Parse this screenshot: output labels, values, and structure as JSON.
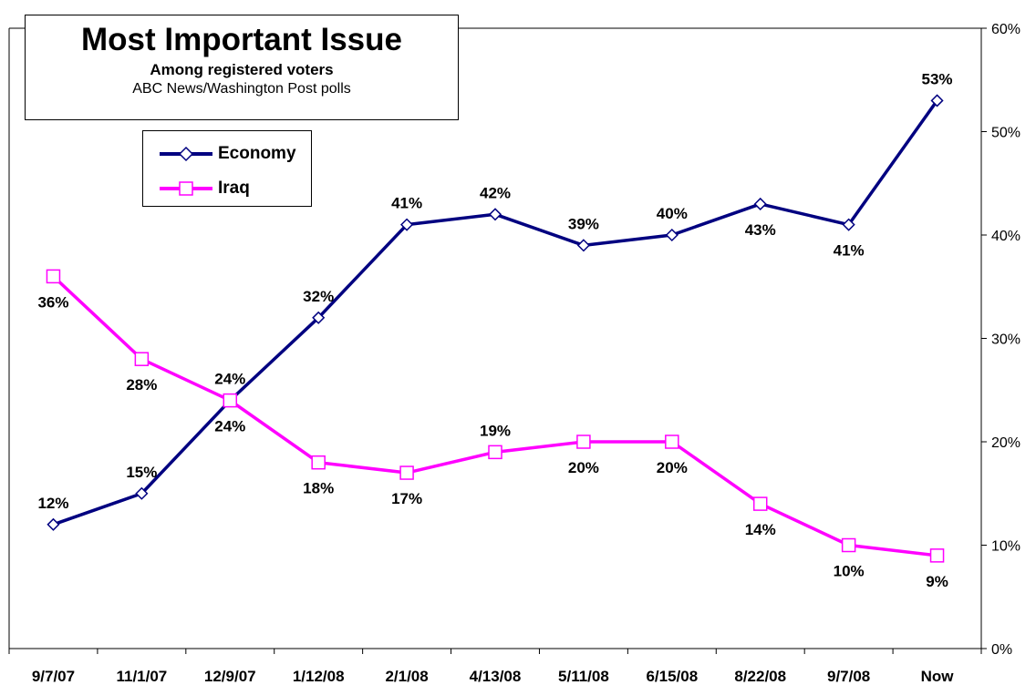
{
  "chart_data": {
    "type": "line",
    "title": "Most Important Issue",
    "subtitle": "Among registered voters",
    "source": "ABC News/Washington Post polls",
    "categories": [
      "9/7/07",
      "11/1/07",
      "12/9/07",
      "1/12/08",
      "2/1/08",
      "4/13/08",
      "5/11/08",
      "6/15/08",
      "8/22/08",
      "9/7/08",
      "Now"
    ],
    "series": [
      {
        "name": "Economy",
        "color": "#000080",
        "marker": "diamond",
        "values": [
          12,
          15,
          24,
          32,
          41,
          42,
          39,
          40,
          43,
          41,
          53
        ],
        "labels": [
          "12%",
          "15%",
          "24%",
          "32%",
          "41%",
          "42%",
          "39%",
          "40%",
          "43%",
          "41%",
          "53%"
        ],
        "label_pos": [
          "above",
          "above",
          "above",
          "above",
          "above",
          "above",
          "above",
          "above",
          "below",
          "below",
          "above"
        ]
      },
      {
        "name": "Iraq",
        "color": "#ff00ff",
        "marker": "square",
        "values": [
          36,
          28,
          24,
          18,
          17,
          19,
          20,
          20,
          14,
          10,
          9
        ],
        "labels": [
          "36%",
          "28%",
          "24%",
          "18%",
          "17%",
          "19%",
          "20%",
          "20%",
          "14%",
          "10%",
          "9%"
        ],
        "label_pos": [
          "below",
          "below",
          "below",
          "below",
          "below",
          "above",
          "below",
          "below",
          "below",
          "below",
          "below"
        ]
      }
    ],
    "yaxis": {
      "side": "right",
      "ylim": [
        0,
        60
      ],
      "ticks": [
        0,
        10,
        20,
        30,
        40,
        50,
        60
      ],
      "tick_labels": [
        "0%",
        "10%",
        "20%",
        "30%",
        "40%",
        "50%",
        "60%"
      ]
    },
    "grid": false,
    "legend": "top-left"
  }
}
